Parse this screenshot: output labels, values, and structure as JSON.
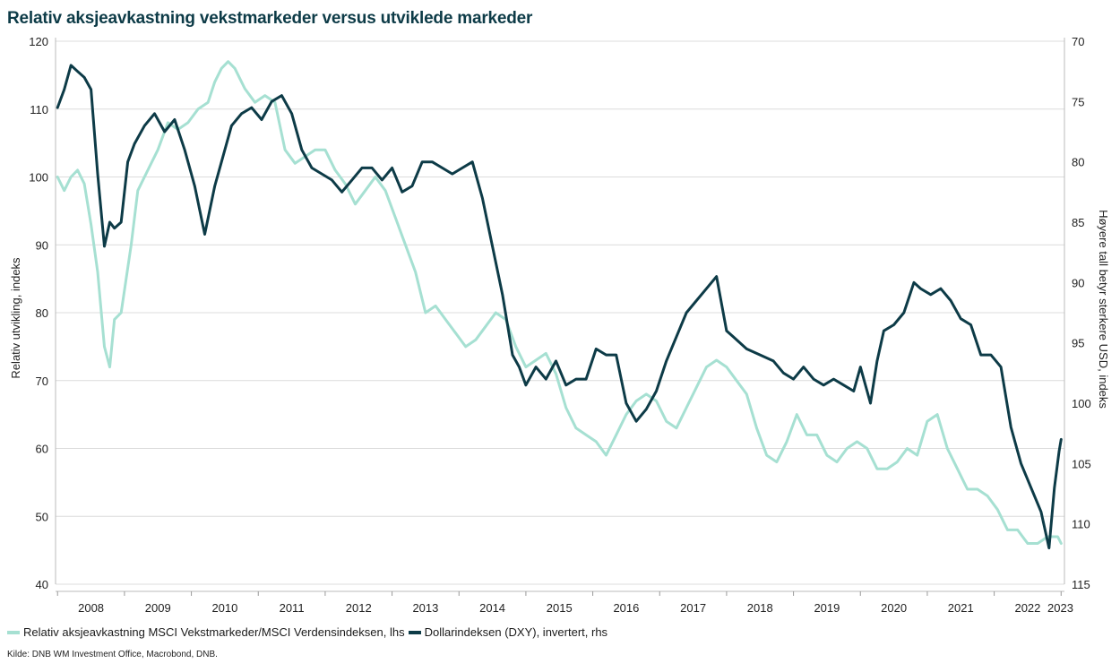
{
  "chart_data": {
    "type": "line",
    "title": "Relativ aksjeavkastning vekstmarkeder versus utviklede markeder",
    "ylabel_left": "Relativ utvikling, indeks",
    "ylabel_right": "Høyere tall betyr sterkere USD, indeks",
    "ylim_left": [
      40,
      120
    ],
    "yticks_left": [
      40,
      50,
      60,
      70,
      80,
      90,
      100,
      110,
      120
    ],
    "ylim_right": [
      115,
      70
    ],
    "yticks_right": [
      70,
      75,
      80,
      85,
      90,
      95,
      100,
      105,
      110,
      115
    ],
    "right_axis_inverted": true,
    "xlim": [
      2007.97,
      2023.05
    ],
    "xticks": [
      "2008",
      "2009",
      "2010",
      "2011",
      "2012",
      "2013",
      "2014",
      "2015",
      "2016",
      "2017",
      "2018",
      "2019",
      "2020",
      "2021",
      "2022",
      "2023"
    ],
    "grid": "horizontal",
    "legend_position": "bottom-left",
    "series": [
      {
        "name": "Relativ aksjeavkastning MSCI Vekstmarkeder/MSCI Verdensindeksen, lhs",
        "axis": "left",
        "color": "#a6e0d2",
        "x": [
          2008.0,
          2008.1,
          2008.2,
          2008.3,
          2008.4,
          2008.5,
          2008.6,
          2008.7,
          2008.78,
          2008.85,
          2008.95,
          2009.1,
          2009.2,
          2009.35,
          2009.5,
          2009.65,
          2009.8,
          2009.95,
          2010.1,
          2010.25,
          2010.35,
          2010.45,
          2010.55,
          2010.65,
          2010.8,
          2010.95,
          2011.1,
          2011.25,
          2011.4,
          2011.55,
          2011.7,
          2011.85,
          2012.0,
          2012.15,
          2012.3,
          2012.45,
          2012.6,
          2012.75,
          2012.9,
          2013.05,
          2013.2,
          2013.35,
          2013.5,
          2013.65,
          2013.8,
          2013.95,
          2014.1,
          2014.25,
          2014.4,
          2014.55,
          2014.7,
          2014.85,
          2015.0,
          2015.15,
          2015.3,
          2015.45,
          2015.6,
          2015.75,
          2015.9,
          2016.05,
          2016.2,
          2016.35,
          2016.5,
          2016.65,
          2016.8,
          2016.95,
          2017.1,
          2017.25,
          2017.4,
          2017.55,
          2017.7,
          2017.85,
          2018.0,
          2018.15,
          2018.3,
          2018.45,
          2018.6,
          2018.75,
          2018.9,
          2019.05,
          2019.2,
          2019.35,
          2019.5,
          2019.65,
          2019.8,
          2019.95,
          2020.1,
          2020.25,
          2020.4,
          2020.55,
          2020.7,
          2020.85,
          2021.0,
          2021.15,
          2021.3,
          2021.45,
          2021.6,
          2021.75,
          2021.9,
          2022.05,
          2022.2,
          2022.35,
          2022.5,
          2022.65,
          2022.8,
          2022.95,
          2023.0
        ],
        "values": [
          100,
          98,
          100,
          101,
          99,
          93,
          86,
          75,
          72,
          79,
          80,
          90,
          98,
          101,
          104,
          108,
          107,
          108,
          110,
          111,
          114,
          116,
          117,
          116,
          113,
          111,
          112,
          111,
          104,
          102,
          103,
          104,
          104,
          101,
          99,
          96,
          98,
          100,
          98,
          94,
          90,
          86,
          80,
          81,
          79,
          77,
          75,
          76,
          78,
          80,
          79,
          75,
          72,
          73,
          74,
          71,
          66,
          63,
          62,
          61,
          59,
          62,
          65,
          67,
          68,
          67,
          64,
          63,
          66,
          69,
          72,
          73,
          72,
          70,
          68,
          63,
          59,
          58,
          61,
          65,
          62,
          62,
          59,
          58,
          60,
          61,
          60,
          57,
          57,
          58,
          60,
          59,
          64,
          65,
          60,
          57,
          54,
          54,
          53,
          51,
          48,
          48,
          46,
          46,
          47,
          47,
          46
        ]
      },
      {
        "name": "Dollarindeksen (DXY), invertert, rhs",
        "axis": "right",
        "color": "#0d3b47",
        "x": [
          2008.0,
          2008.1,
          2008.2,
          2008.3,
          2008.4,
          2008.5,
          2008.6,
          2008.7,
          2008.78,
          2008.85,
          2008.95,
          2009.05,
          2009.15,
          2009.3,
          2009.45,
          2009.6,
          2009.75,
          2009.9,
          2010.05,
          2010.2,
          2010.35,
          2010.45,
          2010.6,
          2010.75,
          2010.9,
          2011.05,
          2011.2,
          2011.35,
          2011.5,
          2011.65,
          2011.8,
          2011.95,
          2012.1,
          2012.25,
          2012.4,
          2012.55,
          2012.7,
          2012.85,
          2013.0,
          2013.15,
          2013.3,
          2013.45,
          2013.6,
          2013.75,
          2013.9,
          2014.05,
          2014.2,
          2014.35,
          2014.5,
          2014.65,
          2014.8,
          2014.9,
          2015.0,
          2015.15,
          2015.3,
          2015.45,
          2015.6,
          2015.75,
          2015.9,
          2016.05,
          2016.2,
          2016.35,
          2016.5,
          2016.65,
          2016.8,
          2016.95,
          2017.1,
          2017.25,
          2017.4,
          2017.55,
          2017.7,
          2017.85,
          2018.0,
          2018.1,
          2018.3,
          2018.5,
          2018.7,
          2018.85,
          2019.0,
          2019.15,
          2019.3,
          2019.45,
          2019.6,
          2019.75,
          2019.9,
          2020.0,
          2020.15,
          2020.25,
          2020.35,
          2020.5,
          2020.65,
          2020.8,
          2020.9,
          2021.05,
          2021.2,
          2021.35,
          2021.5,
          2021.65,
          2021.8,
          2021.95,
          2022.1,
          2022.25,
          2022.4,
          2022.55,
          2022.7,
          2022.82,
          2022.9,
          2022.97,
          2023.0
        ],
        "values": [
          75.5,
          74,
          72,
          72.5,
          73,
          74,
          81,
          87,
          85,
          85.5,
          85,
          80,
          78.5,
          77,
          76,
          77.5,
          76.5,
          79,
          82,
          86,
          82,
          80,
          77,
          76,
          75.5,
          76.5,
          75,
          74.5,
          76,
          79,
          80.5,
          81,
          81.5,
          82.5,
          81.5,
          80.5,
          80.5,
          81.5,
          80.5,
          82.5,
          82,
          80,
          80,
          80.5,
          81,
          80.5,
          80,
          83,
          87,
          91,
          96,
          97,
          98.5,
          97,
          98,
          96.5,
          98.5,
          98,
          98,
          95.5,
          96,
          96,
          100,
          101.5,
          100.5,
          99,
          96.5,
          94.5,
          92.5,
          91.5,
          90.5,
          89.5,
          94,
          94.5,
          95.5,
          96,
          96.5,
          97.5,
          98,
          97,
          98,
          98.5,
          98,
          98.5,
          99,
          97,
          100,
          96.5,
          94,
          93.5,
          92.5,
          90,
          90.5,
          91,
          90.5,
          91.5,
          93,
          93.5,
          96,
          96,
          97,
          102,
          105,
          107,
          109,
          112,
          107,
          104,
          103
        ]
      }
    ]
  },
  "legend": {
    "item1": "Relativ aksjeavkastning MSCI Vekstmarkeder/MSCI Verdensindeksen, lhs",
    "item2": "Dollarindeksen (DXY), invertert, rhs"
  },
  "source": "Kilde: DNB WM Investment Office, Macrobond, DNB."
}
